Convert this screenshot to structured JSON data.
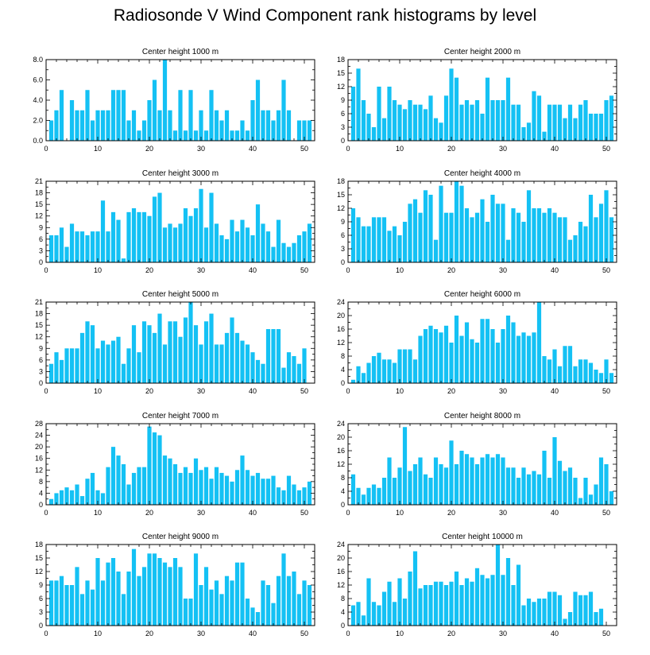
{
  "title": "Radiosonde V Wind Component rank histograms by level",
  "colors": {
    "bar": "#14c1f4",
    "axis": "#000000",
    "background": "#ffffff"
  },
  "chart_data": [
    {
      "type": "bar",
      "title": "Center height 1000 m",
      "ylim": [
        0,
        8
      ],
      "yticks": [
        "0.0",
        "2.0",
        "4.0",
        "6.0",
        "8.0"
      ],
      "xticks": [
        0,
        10,
        20,
        30,
        40,
        50
      ],
      "xlim": [
        0,
        52
      ],
      "values": [
        2,
        3,
        5,
        0,
        4,
        3,
        3,
        5,
        2,
        3,
        3,
        3,
        5,
        5,
        5,
        2,
        3,
        1,
        2,
        4,
        6,
        3,
        8,
        3,
        1,
        5,
        1,
        5,
        1,
        3,
        1,
        5,
        3,
        2,
        3,
        1,
        1,
        2,
        1,
        4,
        6,
        3,
        3,
        2,
        3,
        6,
        3,
        0,
        2,
        2,
        2
      ]
    },
    {
      "type": "bar",
      "title": "Center height 2000 m",
      "ylim": [
        0,
        18
      ],
      "yticks": [
        "0",
        "3",
        "6",
        "9",
        "12",
        "15",
        "18"
      ],
      "xticks": [
        0,
        10,
        20,
        30,
        40,
        50
      ],
      "xlim": [
        0,
        52
      ],
      "values": [
        12,
        16,
        9,
        6,
        3,
        12,
        5,
        12,
        9,
        8,
        7,
        9,
        8,
        8,
        7,
        10,
        5,
        4,
        10,
        16,
        14,
        8,
        9,
        8,
        9,
        6,
        14,
        9,
        9,
        9,
        14,
        8,
        8,
        3,
        4,
        11,
        10,
        2,
        8,
        8,
        8,
        5,
        8,
        5,
        8,
        9,
        6,
        6,
        6,
        9,
        10
      ]
    },
    {
      "type": "bar",
      "title": "Center height 3000 m",
      "ylim": [
        0,
        21
      ],
      "yticks": [
        "0",
        "3",
        "6",
        "9",
        "12",
        "15",
        "18",
        "21"
      ],
      "xticks": [
        0,
        10,
        20,
        30,
        40,
        50
      ],
      "xlim": [
        0,
        52
      ],
      "values": [
        7,
        7,
        9,
        4,
        10,
        8,
        8,
        7,
        8,
        8,
        16,
        8,
        13,
        11,
        1,
        13,
        14,
        13,
        13,
        12,
        17,
        18,
        9,
        10,
        9,
        10,
        14,
        12,
        14,
        19,
        9,
        18,
        10,
        7,
        6,
        11,
        8,
        11,
        9,
        7,
        15,
        10,
        8,
        4,
        11,
        5,
        4,
        5,
        7,
        8,
        10
      ]
    },
    {
      "type": "bar",
      "title": "Center height 4000 m",
      "ylim": [
        0,
        18
      ],
      "yticks": [
        "0",
        "3",
        "6",
        "9",
        "12",
        "15",
        "18"
      ],
      "xticks": [
        0,
        10,
        20,
        30,
        40,
        50
      ],
      "xlim": [
        0,
        52
      ],
      "values": [
        12,
        10,
        8,
        8,
        10,
        10,
        10,
        7,
        8,
        6,
        9,
        13,
        14,
        11,
        16,
        15,
        5,
        17,
        11,
        11,
        18,
        17,
        12,
        10,
        11,
        14,
        9,
        15,
        13,
        13,
        5,
        12,
        11,
        9,
        16,
        12,
        12,
        11,
        12,
        11,
        10,
        10,
        5,
        6,
        9,
        8,
        15,
        10,
        13,
        16,
        10
      ]
    },
    {
      "type": "bar",
      "title": "Center height 5000 m",
      "ylim": [
        0,
        21
      ],
      "yticks": [
        "0",
        "3",
        "6",
        "9",
        "12",
        "15",
        "18",
        "21"
      ],
      "xticks": [
        0,
        10,
        20,
        30,
        40,
        50
      ],
      "xlim": [
        0,
        52
      ],
      "values": [
        5,
        8,
        6,
        9,
        9,
        9,
        13,
        16,
        15,
        9,
        11,
        10,
        11,
        12,
        5,
        9,
        15,
        8,
        16,
        15,
        13,
        18,
        10,
        16,
        16,
        12,
        17,
        21,
        15,
        10,
        16,
        18,
        10,
        10,
        13,
        17,
        13,
        11,
        10,
        8,
        6,
        5,
        14,
        14,
        14,
        4,
        8,
        7,
        5,
        9,
        0
      ]
    },
    {
      "type": "bar",
      "title": "Center height 6000 m",
      "ylim": [
        0,
        24
      ],
      "yticks": [
        "0",
        "4",
        "8",
        "12",
        "16",
        "20",
        "24"
      ],
      "xticks": [
        0,
        10,
        20,
        30,
        40,
        50
      ],
      "xlim": [
        0,
        52
      ],
      "values": [
        1,
        5,
        3,
        6,
        8,
        9,
        7,
        7,
        6,
        10,
        10,
        10,
        7,
        14,
        16,
        17,
        16,
        15,
        17,
        12,
        20,
        14,
        18,
        13,
        12,
        19,
        19,
        16,
        12,
        16,
        20,
        18,
        14,
        15,
        14,
        15,
        24,
        8,
        7,
        10,
        5,
        11,
        11,
        5,
        7,
        7,
        6,
        4,
        3,
        7,
        3
      ]
    },
    {
      "type": "bar",
      "title": "Center height 7000 m",
      "ylim": [
        0,
        28
      ],
      "yticks": [
        "0",
        "4",
        "8",
        "12",
        "16",
        "20",
        "24",
        "28"
      ],
      "xticks": [
        0,
        10,
        20,
        30,
        40,
        50
      ],
      "xlim": [
        0,
        52
      ],
      "values": [
        2,
        4,
        5,
        6,
        5,
        7,
        3,
        9,
        11,
        5,
        4,
        13,
        20,
        17,
        14,
        7,
        11,
        13,
        13,
        27,
        25,
        24,
        17,
        16,
        14,
        11,
        13,
        11,
        16,
        12,
        13,
        9,
        13,
        11,
        10,
        8,
        12,
        17,
        12,
        10,
        11,
        9,
        9,
        10,
        6,
        5,
        10,
        7,
        5,
        6,
        8
      ]
    },
    {
      "type": "bar",
      "title": "Center height 8000 m",
      "ylim": [
        0,
        24
      ],
      "yticks": [
        "0",
        "4",
        "8",
        "12",
        "16",
        "20",
        "24"
      ],
      "xticks": [
        0,
        10,
        20,
        30,
        40,
        50
      ],
      "xlim": [
        0,
        52
      ],
      "values": [
        9,
        5,
        3,
        5,
        6,
        5,
        8,
        14,
        8,
        11,
        23,
        10,
        12,
        14,
        9,
        8,
        14,
        12,
        11,
        19,
        12,
        16,
        15,
        14,
        12,
        14,
        15,
        14,
        15,
        14,
        11,
        11,
        8,
        11,
        9,
        10,
        9,
        16,
        8,
        20,
        13,
        10,
        11,
        8,
        2,
        8,
        3,
        6,
        14,
        12,
        4
      ]
    },
    {
      "type": "bar",
      "title": "Center height 9000 m",
      "ylim": [
        0,
        18
      ],
      "yticks": [
        "0",
        "3",
        "6",
        "9",
        "12",
        "15",
        "18"
      ],
      "xticks": [
        0,
        10,
        20,
        30,
        40,
        50
      ],
      "xlim": [
        0,
        52
      ],
      "values": [
        10,
        10,
        11,
        9,
        9,
        13,
        7,
        10,
        8,
        15,
        10,
        14,
        15,
        12,
        7,
        12,
        17,
        11,
        13,
        16,
        16,
        15,
        14,
        13,
        15,
        13,
        6,
        6,
        16,
        9,
        13,
        8,
        10,
        7,
        11,
        10,
        14,
        14,
        6,
        4,
        3,
        10,
        9,
        5,
        11,
        16,
        11,
        12,
        7,
        10,
        9
      ]
    },
    {
      "type": "bar",
      "title": "Center height 10000 m",
      "ylim": [
        0,
        24
      ],
      "yticks": [
        "0",
        "4",
        "8",
        "12",
        "16",
        "20",
        "24"
      ],
      "xticks": [
        0,
        10,
        20,
        30,
        40,
        50
      ],
      "xlim": [
        0,
        52
      ],
      "values": [
        6,
        7,
        3,
        14,
        7,
        6,
        10,
        13,
        7,
        14,
        8,
        16,
        22,
        11,
        12,
        12,
        13,
        13,
        12,
        13,
        16,
        12,
        14,
        13,
        17,
        15,
        14,
        15,
        24,
        15,
        20,
        12,
        18,
        6,
        8,
        7,
        8,
        8,
        10,
        10,
        9,
        2,
        4,
        10,
        9,
        9,
        10,
        4,
        5,
        0,
        0
      ]
    }
  ]
}
